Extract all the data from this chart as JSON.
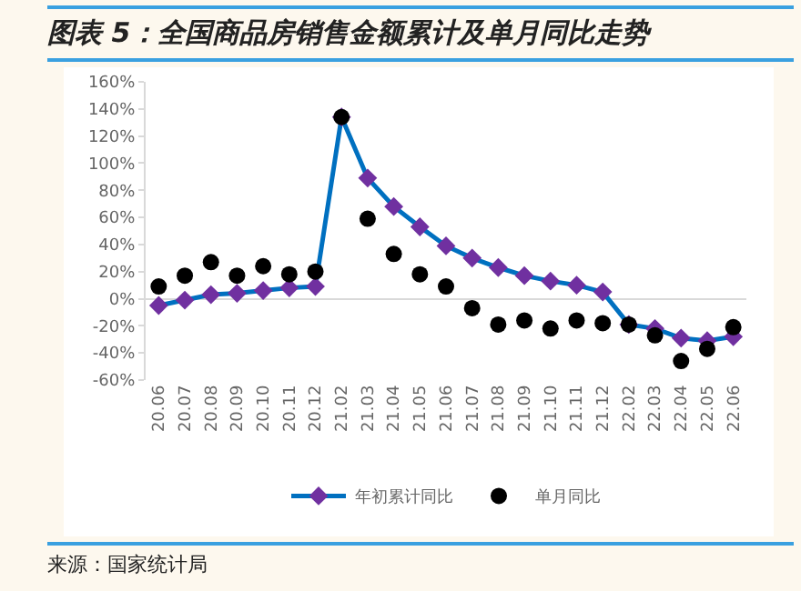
{
  "chart_data": {
    "type": "line",
    "title": "图表 5：全国商品房销售金额累计及单月同比走势",
    "categories": [
      "20.06",
      "20.07",
      "20.08",
      "20.09",
      "20.10",
      "20.11",
      "20.12",
      "21.02",
      "21.03",
      "21.04",
      "21.05",
      "21.06",
      "21.07",
      "21.08",
      "21.09",
      "21.10",
      "21.11",
      "21.12",
      "22.02",
      "22.03",
      "22.04",
      "22.05",
      "22.06"
    ],
    "series": [
      {
        "name": "年初累计同比",
        "type": "line",
        "marker": "diamond",
        "color": "#0070c0",
        "colors": [
          "#7030a0",
          "#7030a0",
          "#7030a0",
          "#7030a0",
          "#7030a0",
          "#7030a0",
          "#7030a0",
          "#7030a0",
          "#7030a0",
          "#7030a0",
          "#7030a0",
          "#7030a0",
          "#7030a0",
          "#7030a0",
          "#7030a0",
          "#7030a0",
          "#7030a0",
          "#7030a0",
          "#7030a0",
          "#7030a0",
          "#7030a0",
          "#7030a0",
          "#7030a0"
        ],
        "values": [
          -5,
          -1,
          3,
          4,
          6,
          8,
          9,
          134,
          89,
          68,
          53,
          39,
          30,
          23,
          17,
          13,
          10,
          5,
          -19,
          -22,
          -29,
          -31,
          -28
        ]
      },
      {
        "name": "单月同比",
        "type": "scatter",
        "marker": "circle",
        "color": "#000000",
        "values": [
          9,
          17,
          27,
          17,
          24,
          18,
          20,
          134,
          59,
          33,
          18,
          9,
          -7,
          -19,
          -16,
          -22,
          -16,
          -18,
          -19,
          -27,
          -46,
          -37,
          -21
        ]
      }
    ],
    "ylim": [
      -60,
      160
    ],
    "yticks": [
      {
        "value": -60,
        "label": "-60%"
      },
      {
        "value": -40,
        "label": "-40%"
      },
      {
        "value": -20,
        "label": "-20%"
      },
      {
        "value": 0,
        "label": "0%"
      },
      {
        "value": 20,
        "label": "20%"
      },
      {
        "value": 40,
        "label": "40%"
      },
      {
        "value": 60,
        "label": "60%"
      },
      {
        "value": 80,
        "label": "80%"
      },
      {
        "value": 100,
        "label": "100%"
      },
      {
        "value": 120,
        "label": "120%"
      },
      {
        "value": 140,
        "label": "140%"
      },
      {
        "value": 160,
        "label": "160%"
      }
    ],
    "legend": "bottom",
    "annotations": [
      "来源：国家统计局"
    ]
  }
}
